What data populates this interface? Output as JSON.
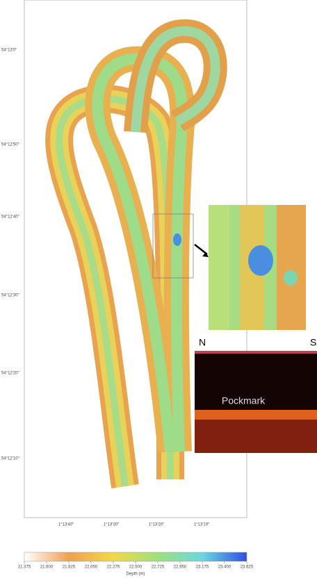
{
  "map": {
    "lat_labels": [
      "54°13'0\"",
      "54°12'50\"",
      "54°12'40\"",
      "54°12'30\"",
      "54°12'20\"",
      "54°12'10\""
    ],
    "lon_labels": [
      "1°13'40\"",
      "1°13'30\"",
      "1°13'20\"",
      "1°13'10\""
    ],
    "profile": {
      "left": "N",
      "right": "S",
      "feature": "Pockmark"
    },
    "colorbar": {
      "label": "Depth (m)",
      "lim": [
        21.375,
        23.625
      ],
      "ticks": [
        {
          "value": 21.375,
          "label": "21.375"
        },
        {
          "value": 21.6,
          "label": "21.600"
        },
        {
          "value": 21.825,
          "label": "21.825"
        },
        {
          "value": 22.05,
          "label": "22.050"
        },
        {
          "value": 22.275,
          "label": "22.275"
        },
        {
          "value": 22.5,
          "label": "22.500"
        },
        {
          "value": 22.725,
          "label": "22.725"
        },
        {
          "value": 22.95,
          "label": "22.950"
        },
        {
          "value": 23.175,
          "label": "23.175"
        },
        {
          "value": 23.4,
          "label": "23.400"
        },
        {
          "value": 23.625,
          "label": "23.625"
        }
      ]
    }
  }
}
